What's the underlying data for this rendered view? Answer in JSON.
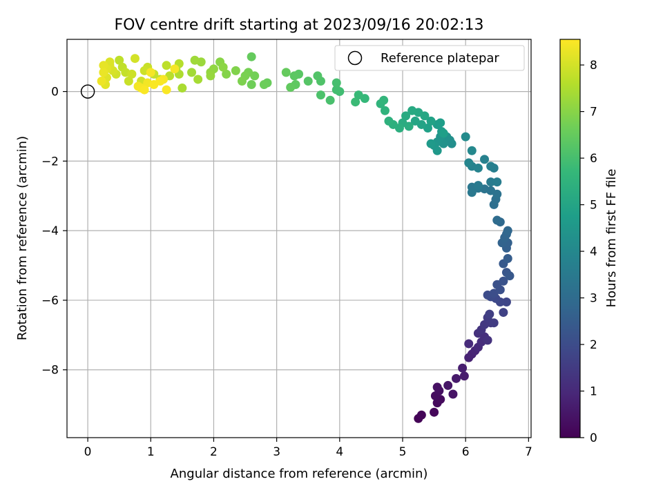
{
  "chart_data": {
    "type": "scatter",
    "title": "FOV centre drift starting at 2023/09/16 20:02:13",
    "xlabel": "Angular distance from reference (arcmin)",
    "ylabel": "Rotation from reference (arcmin)",
    "xlim": [
      -0.33,
      7.04
    ],
    "ylim": [
      -9.95,
      1.5
    ],
    "xticks": [
      0,
      1,
      2,
      3,
      4,
      5,
      6,
      7
    ],
    "yticks": [
      -8,
      -6,
      -4,
      -2,
      0
    ],
    "xtick_labels": [
      "0",
      "1",
      "2",
      "3",
      "4",
      "5",
      "6",
      "7"
    ],
    "ytick_labels": [
      "−8",
      "−6",
      "−4",
      "−2",
      "0"
    ],
    "grid": true,
    "legend": {
      "position": "top-right",
      "entries": [
        "Reference platepar"
      ]
    },
    "reference_point": {
      "x": 0,
      "y": 0,
      "marker": "open-circle",
      "label": "Reference platepar"
    },
    "colorbar": {
      "label": "Hours from first FF file",
      "colormap": "viridis",
      "range": [
        0,
        8.55
      ],
      "ticks": [
        0,
        1,
        2,
        3,
        4,
        5,
        6,
        7,
        8
      ],
      "tick_labels": [
        "0",
        "1",
        "2",
        "3",
        "4",
        "5",
        "6",
        "7",
        "8"
      ],
      "colors": [
        "#440154",
        "#482878",
        "#3e4989",
        "#31688e",
        "#26828e",
        "#1f9e89",
        "#35b779",
        "#6ece58",
        "#b5de2b",
        "#fde725"
      ]
    },
    "points": [
      {
        "x": 5.25,
        "y": -9.4,
        "h": 0.05
      },
      {
        "x": 5.3,
        "y": -9.3,
        "h": 0.1
      },
      {
        "x": 5.5,
        "y": -9.22,
        "h": 0.15
      },
      {
        "x": 5.55,
        "y": -8.95,
        "h": 0.2
      },
      {
        "x": 5.6,
        "y": -8.85,
        "h": 0.25
      },
      {
        "x": 5.52,
        "y": -8.75,
        "h": 0.3
      },
      {
        "x": 5.58,
        "y": -8.6,
        "h": 0.35
      },
      {
        "x": 5.55,
        "y": -8.5,
        "h": 0.4
      },
      {
        "x": 5.8,
        "y": -8.7,
        "h": 0.45
      },
      {
        "x": 5.72,
        "y": -8.45,
        "h": 0.5
      },
      {
        "x": 5.85,
        "y": -8.25,
        "h": 0.6
      },
      {
        "x": 5.98,
        "y": -8.18,
        "h": 0.65
      },
      {
        "x": 5.95,
        "y": -7.95,
        "h": 0.7
      },
      {
        "x": 6.05,
        "y": -7.65,
        "h": 0.8
      },
      {
        "x": 6.1,
        "y": -7.55,
        "h": 0.85
      },
      {
        "x": 6.15,
        "y": -7.45,
        "h": 0.9
      },
      {
        "x": 6.2,
        "y": -7.35,
        "h": 1.0
      },
      {
        "x": 6.05,
        "y": -7.25,
        "h": 1.05
      },
      {
        "x": 6.25,
        "y": -7.2,
        "h": 1.1
      },
      {
        "x": 6.3,
        "y": -7.05,
        "h": 1.15
      },
      {
        "x": 6.2,
        "y": -6.95,
        "h": 1.2
      },
      {
        "x": 6.35,
        "y": -7.15,
        "h": 1.25
      },
      {
        "x": 6.25,
        "y": -6.85,
        "h": 1.3
      },
      {
        "x": 6.3,
        "y": -6.7,
        "h": 1.4
      },
      {
        "x": 6.4,
        "y": -6.65,
        "h": 1.45
      },
      {
        "x": 6.35,
        "y": -6.5,
        "h": 1.5
      },
      {
        "x": 6.45,
        "y": -6.65,
        "h": 1.55
      },
      {
        "x": 6.38,
        "y": -6.4,
        "h": 1.6
      },
      {
        "x": 6.6,
        "y": -6.35,
        "h": 1.7
      },
      {
        "x": 6.65,
        "y": -6.05,
        "h": 1.8
      },
      {
        "x": 6.55,
        "y": -6.05,
        "h": 1.85
      },
      {
        "x": 6.48,
        "y": -5.95,
        "h": 1.9
      },
      {
        "x": 6.4,
        "y": -5.9,
        "h": 1.95
      },
      {
        "x": 6.35,
        "y": -5.85,
        "h": 2.0
      },
      {
        "x": 6.45,
        "y": -5.8,
        "h": 2.05
      },
      {
        "x": 6.55,
        "y": -5.7,
        "h": 2.1
      },
      {
        "x": 6.5,
        "y": -5.55,
        "h": 2.15
      },
      {
        "x": 6.6,
        "y": -5.45,
        "h": 2.2
      },
      {
        "x": 6.65,
        "y": -5.2,
        "h": 2.3
      },
      {
        "x": 6.7,
        "y": -5.3,
        "h": 2.35
      },
      {
        "x": 6.6,
        "y": -4.95,
        "h": 2.4
      },
      {
        "x": 6.67,
        "y": -4.8,
        "h": 2.5
      },
      {
        "x": 6.65,
        "y": -4.5,
        "h": 2.6
      },
      {
        "x": 6.67,
        "y": -4.35,
        "h": 2.65
      },
      {
        "x": 6.58,
        "y": -4.35,
        "h": 2.7
      },
      {
        "x": 6.62,
        "y": -4.2,
        "h": 2.75
      },
      {
        "x": 6.65,
        "y": -4.1,
        "h": 2.8
      },
      {
        "x": 6.67,
        "y": -4.0,
        "h": 2.85
      },
      {
        "x": 6.55,
        "y": -3.75,
        "h": 2.9
      },
      {
        "x": 6.5,
        "y": -3.7,
        "h": 3.0
      },
      {
        "x": 6.45,
        "y": -3.25,
        "h": 3.1
      },
      {
        "x": 6.48,
        "y": -3.1,
        "h": 3.15
      },
      {
        "x": 6.5,
        "y": -2.95,
        "h": 3.2
      },
      {
        "x": 6.4,
        "y": -2.85,
        "h": 3.25
      },
      {
        "x": 6.3,
        "y": -2.8,
        "h": 3.3
      },
      {
        "x": 6.2,
        "y": -2.78,
        "h": 3.35
      },
      {
        "x": 6.1,
        "y": -2.75,
        "h": 3.4
      },
      {
        "x": 6.1,
        "y": -2.9,
        "h": 3.45
      },
      {
        "x": 6.2,
        "y": -2.7,
        "h": 3.5
      },
      {
        "x": 6.4,
        "y": -2.6,
        "h": 3.55
      },
      {
        "x": 6.5,
        "y": -2.6,
        "h": 3.6
      },
      {
        "x": 6.45,
        "y": -2.2,
        "h": 3.65
      },
      {
        "x": 6.4,
        "y": -2.15,
        "h": 3.7
      },
      {
        "x": 6.3,
        "y": -1.95,
        "h": 3.75
      },
      {
        "x": 6.1,
        "y": -2.15,
        "h": 3.8
      },
      {
        "x": 6.2,
        "y": -2.2,
        "h": 3.85
      },
      {
        "x": 6.05,
        "y": -2.05,
        "h": 3.9
      },
      {
        "x": 6.1,
        "y": -1.7,
        "h": 4.0
      },
      {
        "x": 6.0,
        "y": -1.3,
        "h": 4.1
      },
      {
        "x": 5.78,
        "y": -1.5,
        "h": 4.2
      },
      {
        "x": 5.75,
        "y": -1.4,
        "h": 4.25
      },
      {
        "x": 5.7,
        "y": -1.3,
        "h": 4.3
      },
      {
        "x": 5.65,
        "y": -1.5,
        "h": 4.35
      },
      {
        "x": 5.6,
        "y": -1.3,
        "h": 4.4
      },
      {
        "x": 5.55,
        "y": -1.45,
        "h": 4.45
      },
      {
        "x": 5.5,
        "y": -1.55,
        "h": 4.5
      },
      {
        "x": 5.55,
        "y": -1.7,
        "h": 4.55
      },
      {
        "x": 5.45,
        "y": -1.5,
        "h": 4.6
      },
      {
        "x": 5.62,
        "y": -1.15,
        "h": 4.65
      },
      {
        "x": 5.55,
        "y": -0.95,
        "h": 4.7
      },
      {
        "x": 5.6,
        "y": -0.9,
        "h": 4.75
      },
      {
        "x": 5.65,
        "y": -1.2,
        "h": 4.8
      },
      {
        "x": 5.4,
        "y": -1.05,
        "h": 4.85
      },
      {
        "x": 5.45,
        "y": -0.85,
        "h": 4.9
      },
      {
        "x": 5.3,
        "y": -0.95,
        "h": 4.95
      },
      {
        "x": 5.2,
        "y": -0.85,
        "h": 5.0
      },
      {
        "x": 5.35,
        "y": -0.7,
        "h": 5.05
      },
      {
        "x": 5.25,
        "y": -0.6,
        "h": 5.1
      },
      {
        "x": 5.15,
        "y": -0.55,
        "h": 5.15
      },
      {
        "x": 5.05,
        "y": -0.7,
        "h": 5.2
      },
      {
        "x": 5.0,
        "y": -0.9,
        "h": 5.25
      },
      {
        "x": 5.1,
        "y": -1.0,
        "h": 5.3
      },
      {
        "x": 4.95,
        "y": -1.05,
        "h": 5.35
      },
      {
        "x": 4.85,
        "y": -0.95,
        "h": 5.4
      },
      {
        "x": 4.78,
        "y": -0.85,
        "h": 5.45
      },
      {
        "x": 4.72,
        "y": -0.55,
        "h": 5.5
      },
      {
        "x": 4.65,
        "y": -0.35,
        "h": 5.55
      },
      {
        "x": 4.7,
        "y": -0.25,
        "h": 5.6
      },
      {
        "x": 4.4,
        "y": -0.2,
        "h": 5.7
      },
      {
        "x": 4.3,
        "y": -0.1,
        "h": 5.75
      },
      {
        "x": 4.25,
        "y": -0.3,
        "h": 5.8
      },
      {
        "x": 4.0,
        "y": 0.0,
        "h": 5.9
      },
      {
        "x": 3.95,
        "y": 0.05,
        "h": 5.95
      },
      {
        "x": 3.95,
        "y": 0.25,
        "h": 6.0
      },
      {
        "x": 3.85,
        "y": -0.25,
        "h": 6.05
      },
      {
        "x": 3.7,
        "y": -0.1,
        "h": 6.1
      },
      {
        "x": 3.7,
        "y": 0.3,
        "h": 6.15
      },
      {
        "x": 3.65,
        "y": 0.45,
        "h": 6.2
      },
      {
        "x": 3.5,
        "y": 0.3,
        "h": 6.25
      },
      {
        "x": 3.35,
        "y": 0.5,
        "h": 6.3
      },
      {
        "x": 3.28,
        "y": 0.45,
        "h": 6.35
      },
      {
        "x": 3.3,
        "y": 0.2,
        "h": 6.4
      },
      {
        "x": 3.22,
        "y": 0.12,
        "h": 6.45
      },
      {
        "x": 3.15,
        "y": 0.55,
        "h": 6.5
      },
      {
        "x": 2.85,
        "y": 0.25,
        "h": 6.55
      },
      {
        "x": 2.8,
        "y": 0.2,
        "h": 6.6
      },
      {
        "x": 2.6,
        "y": 0.2,
        "h": 6.65
      },
      {
        "x": 2.65,
        "y": 0.45,
        "h": 6.7
      },
      {
        "x": 2.55,
        "y": 0.55,
        "h": 6.75
      },
      {
        "x": 2.5,
        "y": 0.45,
        "h": 6.8
      },
      {
        "x": 2.45,
        "y": 0.3,
        "h": 6.85
      },
      {
        "x": 2.35,
        "y": 0.6,
        "h": 6.9
      },
      {
        "x": 2.2,
        "y": 0.5,
        "h": 6.95
      },
      {
        "x": 2.1,
        "y": 0.85,
        "h": 7.0
      },
      {
        "x": 2.15,
        "y": 0.7,
        "h": 7.05
      },
      {
        "x": 2.6,
        "y": 1.0,
        "h": 6.5
      },
      {
        "x": 2.0,
        "y": 0.65,
        "h": 7.1
      },
      {
        "x": 1.95,
        "y": 0.55,
        "h": 7.15
      },
      {
        "x": 1.95,
        "y": 0.45,
        "h": 7.2
      },
      {
        "x": 1.8,
        "y": 0.85,
        "h": 7.25
      },
      {
        "x": 1.7,
        "y": 0.9,
        "h": 7.3
      },
      {
        "x": 1.65,
        "y": 0.55,
        "h": 7.35
      },
      {
        "x": 1.75,
        "y": 0.35,
        "h": 7.4
      },
      {
        "x": 1.5,
        "y": 0.1,
        "h": 7.45
      },
      {
        "x": 1.45,
        "y": 0.5,
        "h": 7.5
      },
      {
        "x": 1.4,
        "y": 0.65,
        "h": 7.55
      },
      {
        "x": 1.45,
        "y": 0.8,
        "h": 7.6
      },
      {
        "x": 1.3,
        "y": 0.45,
        "h": 7.65
      },
      {
        "x": 1.25,
        "y": 0.75,
        "h": 7.7
      },
      {
        "x": 1.15,
        "y": 0.35,
        "h": 7.75
      },
      {
        "x": 1.05,
        "y": 0.5,
        "h": 7.8
      },
      {
        "x": 0.95,
        "y": 0.7,
        "h": 7.85
      },
      {
        "x": 0.9,
        "y": 0.6,
        "h": 7.9
      },
      {
        "x": 0.85,
        "y": 0.3,
        "h": 7.95
      },
      {
        "x": 0.75,
        "y": 0.95,
        "h": 8.0
      },
      {
        "x": 0.7,
        "y": 0.5,
        "h": 7.9
      },
      {
        "x": 0.65,
        "y": 0.3,
        "h": 7.85
      },
      {
        "x": 0.6,
        "y": 0.55,
        "h": 7.8
      },
      {
        "x": 0.55,
        "y": 0.7,
        "h": 7.75
      },
      {
        "x": 0.5,
        "y": 0.9,
        "h": 7.7
      },
      {
        "x": 0.45,
        "y": 0.5,
        "h": 7.95
      },
      {
        "x": 0.4,
        "y": 0.6,
        "h": 8.05
      },
      {
        "x": 0.35,
        "y": 0.85,
        "h": 8.1
      },
      {
        "x": 0.3,
        "y": 0.4,
        "h": 8.15
      },
      {
        "x": 0.28,
        "y": 0.2,
        "h": 8.2
      },
      {
        "x": 0.25,
        "y": 0.75,
        "h": 8.25
      },
      {
        "x": 0.25,
        "y": 0.55,
        "h": 8.3
      },
      {
        "x": 0.22,
        "y": 0.3,
        "h": 8.35
      },
      {
        "x": 0.3,
        "y": 0.65,
        "h": 8.2
      },
      {
        "x": 0.35,
        "y": 0.75,
        "h": 8.1
      },
      {
        "x": 0.8,
        "y": 0.15,
        "h": 8.4
      },
      {
        "x": 0.85,
        "y": 0.1,
        "h": 8.45
      },
      {
        "x": 0.9,
        "y": 0.05,
        "h": 8.5
      },
      {
        "x": 0.95,
        "y": 0.25,
        "h": 8.4
      },
      {
        "x": 1.0,
        "y": 0.55,
        "h": 8.45
      },
      {
        "x": 1.05,
        "y": 0.2,
        "h": 8.5
      },
      {
        "x": 1.15,
        "y": 0.3,
        "h": 8.5
      },
      {
        "x": 1.2,
        "y": 0.35,
        "h": 8.45
      },
      {
        "x": 1.25,
        "y": 0.05,
        "h": 8.5
      },
      {
        "x": 1.38,
        "y": 0.65,
        "h": 8.45
      }
    ]
  }
}
